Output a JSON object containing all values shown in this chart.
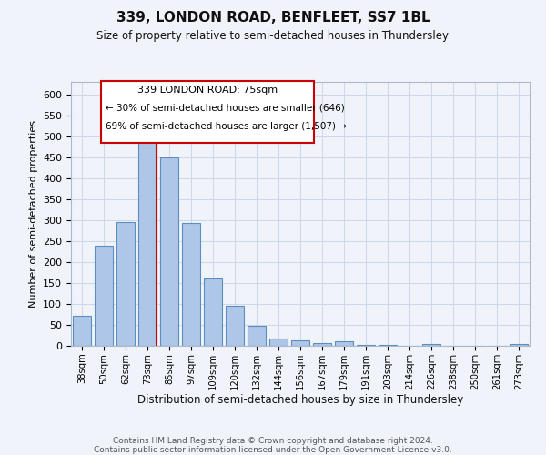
{
  "title": "339, LONDON ROAD, BENFLEET, SS7 1BL",
  "subtitle": "Size of property relative to semi-detached houses in Thundersley",
  "xlabel": "Distribution of semi-detached houses by size in Thundersley",
  "ylabel": "Number of semi-detached properties",
  "footer": "Contains HM Land Registry data © Crown copyright and database right 2024.\nContains public sector information licensed under the Open Government Licence v3.0.",
  "categories": [
    "38sqm",
    "50sqm",
    "62sqm",
    "73sqm",
    "85sqm",
    "97sqm",
    "109sqm",
    "120sqm",
    "132sqm",
    "144sqm",
    "156sqm",
    "167sqm",
    "179sqm",
    "191sqm",
    "203sqm",
    "214sqm",
    "226sqm",
    "238sqm",
    "250sqm",
    "261sqm",
    "273sqm"
  ],
  "values": [
    72,
    240,
    295,
    488,
    450,
    293,
    161,
    95,
    47,
    18,
    14,
    7,
    10,
    2,
    2,
    1,
    4,
    1,
    0,
    0,
    5
  ],
  "bar_color": "#aec6e8",
  "bar_edge_color": "#5a8fc0",
  "grid_color": "#d0d8e8",
  "background_color": "#f0f4fa",
  "annotation_box_color": "#ffffff",
  "annotation_box_edge": "#cc0000",
  "property_label": "339 LONDON ROAD: 75sqm",
  "pct_smaller": "30% of semi-detached houses are smaller (646)",
  "pct_larger": "69% of semi-detached houses are larger (1,507)",
  "ylim": [
    0,
    630
  ],
  "yticks": [
    0,
    50,
    100,
    150,
    200,
    250,
    300,
    350,
    400,
    450,
    500,
    550,
    600
  ],
  "red_line_x": 3.43
}
